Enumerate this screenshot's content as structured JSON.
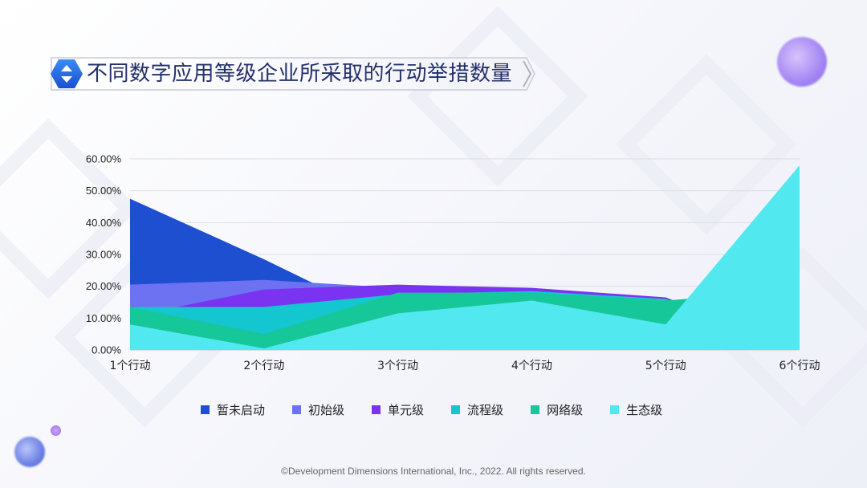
{
  "title": "不同数字应用等级企业所采取的行动举措数量",
  "footer": "©Development Dimensions International, Inc., 2022. All rights reserved.",
  "chart_data": {
    "type": "area",
    "title": "",
    "xlabel": "",
    "ylabel": "",
    "categories": [
      "1个行动",
      "2个行动",
      "3个行动",
      "4个行动",
      "5个行动",
      "6个行动"
    ],
    "y_ticks": [
      "0.00%",
      "10.00%",
      "20.00%",
      "30.00%",
      "40.00%",
      "50.00%",
      "60.00%"
    ],
    "ylim": [
      0,
      60
    ],
    "grid": "horizontal",
    "legend_position": "bottom",
    "series": [
      {
        "name": "暂未启动",
        "color": "#1f4fd1",
        "values": [
          47.5,
          28.5,
          8.0,
          3.0,
          1.5,
          0
        ]
      },
      {
        "name": "初始级",
        "color": "#6c72f2",
        "values": [
          20.5,
          22.0,
          19.5,
          18.5,
          15.0,
          0
        ]
      },
      {
        "name": "单元级",
        "color": "#7a33f0",
        "values": [
          10.5,
          19.0,
          20.5,
          19.5,
          16.5,
          0
        ]
      },
      {
        "name": "流程级",
        "color": "#14c6cf",
        "values": [
          13.5,
          13.5,
          17.5,
          18.5,
          16.0,
          0
        ]
      },
      {
        "name": "网络级",
        "color": "#16c79a",
        "values": [
          13.5,
          5.0,
          18.0,
          18.0,
          15.5,
          19.0
        ]
      },
      {
        "name": "生态级",
        "color": "#52e8f0",
        "values": [
          8.0,
          0.5,
          11.5,
          15.5,
          8.0,
          58.0
        ]
      }
    ]
  }
}
